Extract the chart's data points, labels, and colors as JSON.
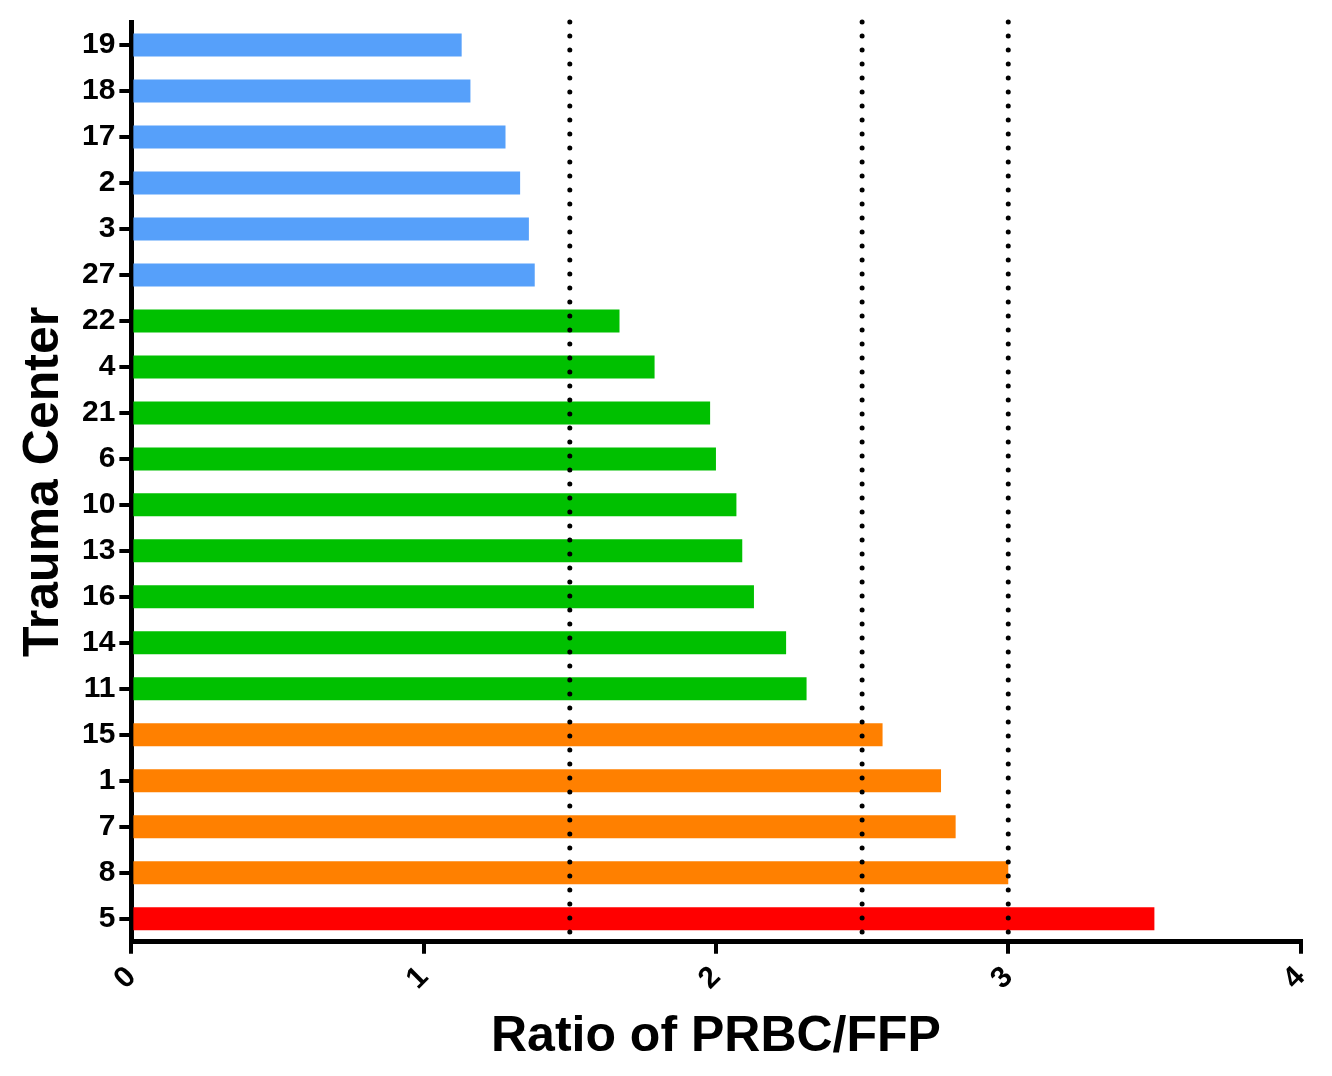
{
  "chart_data": {
    "type": "bar",
    "orientation": "horizontal",
    "xlabel": "Ratio of PRBC/FFP",
    "ylabel": "Trauma Center",
    "categories": [
      "19",
      "18",
      "17",
      "2",
      "3",
      "27",
      "22",
      "4",
      "21",
      "6",
      "10",
      "13",
      "16",
      "14",
      "11",
      "15",
      "1",
      "7",
      "8",
      "5"
    ],
    "values": [
      1.13,
      1.16,
      1.28,
      1.33,
      1.36,
      1.38,
      1.67,
      1.79,
      1.98,
      2.0,
      2.07,
      2.09,
      2.13,
      2.24,
      2.31,
      2.57,
      2.77,
      2.82,
      3.0,
      3.5
    ],
    "colors": [
      "#56a0fa",
      "#56a0fa",
      "#56a0fa",
      "#56a0fa",
      "#56a0fa",
      "#56a0fa",
      "#00c000",
      "#00c000",
      "#00c000",
      "#00c000",
      "#00c000",
      "#00c000",
      "#00c000",
      "#00c000",
      "#00c000",
      "#ff8000",
      "#ff8000",
      "#ff8000",
      "#ff8000",
      "#ff0000"
    ],
    "xlim": [
      0,
      4
    ],
    "xticks": [
      0,
      1,
      2,
      3,
      4
    ],
    "grid": false,
    "legend": false,
    "ref_lines": [
      {
        "axis": "x",
        "value": 1.5,
        "color": "#000000",
        "line_style": "dotted"
      },
      {
        "axis": "x",
        "value": 2.5,
        "color": "#000000",
        "line_style": "dotted"
      },
      {
        "axis": "x",
        "value": 3,
        "color": "#000000",
        "line_style": "dotted"
      }
    ]
  }
}
